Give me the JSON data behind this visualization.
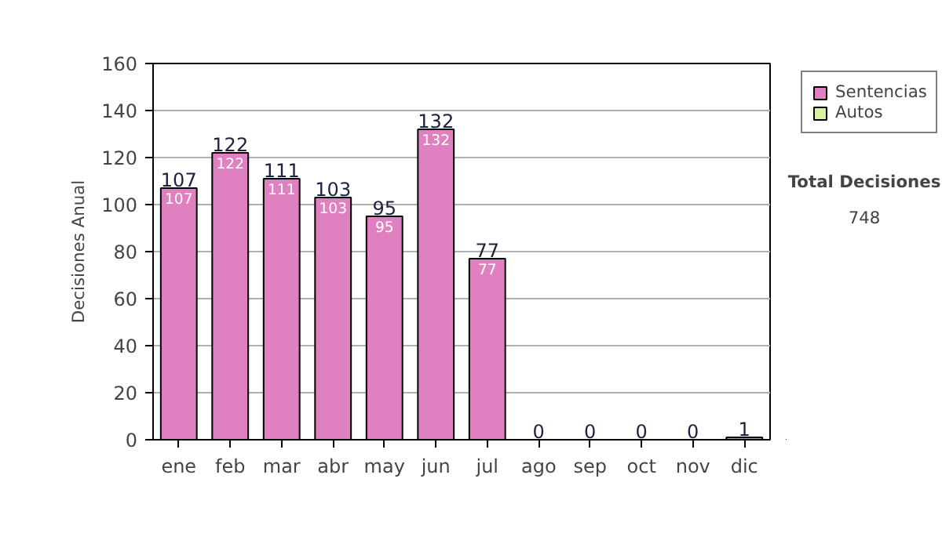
{
  "chart_data": {
    "type": "bar",
    "stacked": true,
    "ylabel": "Decisiones Anual",
    "categories": [
      "ene",
      "feb",
      "mar",
      "abr",
      "may",
      "jun",
      "jul",
      "ago",
      "sep",
      "oct",
      "nov",
      "dic"
    ],
    "series": [
      {
        "name": "Sentencias",
        "color": "#df80c0",
        "values": [
          107,
          122,
          111,
          103,
          95,
          132,
          77,
          0,
          0,
          0,
          0,
          1
        ],
        "value_labels": [
          "107",
          "122",
          "111",
          "103",
          "95",
          "132",
          "77",
          null,
          null,
          null,
          null,
          null
        ]
      },
      {
        "name": "Autos",
        "color": "#d8f0a0",
        "values": [
          0,
          0,
          0,
          0,
          0,
          0,
          0,
          0,
          0,
          0,
          0,
          0
        ]
      }
    ],
    "totals": [
      "107",
      "122",
      "111",
      "103",
      "95",
      "132",
      "77",
      "0",
      "0",
      "0",
      "0",
      "1"
    ],
    "ylim": [
      0,
      160
    ],
    "yticks": [
      0,
      20,
      40,
      60,
      80,
      100,
      120,
      140,
      160
    ],
    "grid": "y",
    "legend": "right",
    "annotations": [
      "Total Decisiones",
      "748"
    ]
  }
}
